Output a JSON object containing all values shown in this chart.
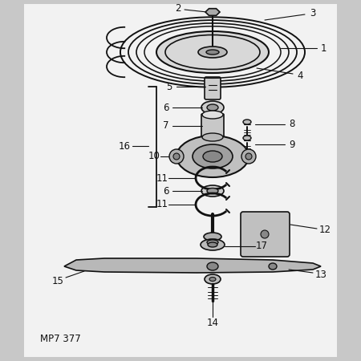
{
  "bg_color": "#c8c8c8",
  "page_bg": "#f0f0f0",
  "line_color": "#111111",
  "text_color": "#111111",
  "title_text": "MP7 377",
  "figsize": [
    4.5,
    4.5
  ],
  "dpi": 100
}
